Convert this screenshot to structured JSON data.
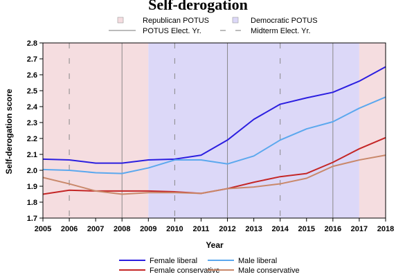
{
  "chart_data": {
    "type": "line",
    "title": "Self-derogation",
    "xlabel": "Year",
    "ylabel": "Self-derogation score",
    "x": [
      2005,
      2006,
      2007,
      2008,
      2009,
      2010,
      2011,
      2012,
      2013,
      2014,
      2015,
      2016,
      2017,
      2018
    ],
    "xlim": [
      2005,
      2018
    ],
    "ylim": [
      1.7,
      2.8
    ],
    "y_ticks": [
      "1.7",
      "1.8",
      "1.9",
      "2.0",
      "2.1",
      "2.2",
      "2.3",
      "2.4",
      "2.5",
      "2.6",
      "2.7",
      "2.8"
    ],
    "x_ticks": [
      "2005",
      "2006",
      "2007",
      "2008",
      "2009",
      "2010",
      "2011",
      "2012",
      "2013",
      "2014",
      "2015",
      "2016",
      "2017",
      "2018"
    ],
    "background_periods": [
      {
        "label": "Republican POTUS",
        "start": 2005,
        "end": 2009,
        "color": "#f5dde0"
      },
      {
        "label": "Democratic POTUS",
        "start": 2009,
        "end": 2017,
        "color": "#dcd8f8"
      },
      {
        "label": "Republican POTUS",
        "start": 2017,
        "end": 2018,
        "color": "#f5dde0"
      }
    ],
    "potus_election_years": [
      2008,
      2012,
      2016
    ],
    "midterm_election_years": [
      2006,
      2010,
      2014,
      2018
    ],
    "reference_lines_legend": {
      "potus": "POTUS Elect. Yr.",
      "midterm": "Midterm Elect. Yr."
    },
    "period_legend": {
      "republican": "Republican POTUS",
      "democratic": "Democratic POTUS"
    },
    "series": [
      {
        "name": "Female liberal",
        "color": "#2b1ee0",
        "values": [
          2.07,
          2.065,
          2.045,
          2.045,
          2.065,
          2.07,
          2.095,
          2.19,
          2.32,
          2.415,
          2.455,
          2.49,
          2.56,
          2.65
        ]
      },
      {
        "name": "Male liberal",
        "color": "#5ba8ee",
        "values": [
          2.005,
          2.0,
          1.985,
          1.98,
          2.015,
          2.065,
          2.065,
          2.04,
          2.09,
          2.19,
          2.26,
          2.305,
          2.39,
          2.46
        ]
      },
      {
        "name": "Female conservative",
        "color": "#c42626",
        "values": [
          1.85,
          1.875,
          1.87,
          1.87,
          1.87,
          1.865,
          1.855,
          1.885,
          1.925,
          1.96,
          1.98,
          2.05,
          2.135,
          2.205
        ]
      },
      {
        "name": "Male conservative",
        "color": "#c9886a",
        "values": [
          1.955,
          1.915,
          1.87,
          1.85,
          1.86,
          1.86,
          1.855,
          1.885,
          1.895,
          1.915,
          1.95,
          2.025,
          2.065,
          2.095
        ]
      }
    ],
    "grid": false,
    "legend_position": "bottom"
  }
}
